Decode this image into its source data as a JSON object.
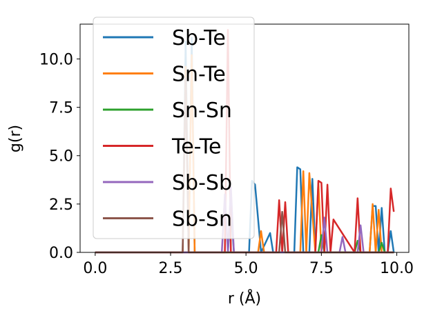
{
  "chart_data": {
    "type": "line",
    "title": "",
    "xlabel": "r (Å)",
    "ylabel": "g(r)",
    "xlim": [
      -0.5,
      10.4
    ],
    "ylim": [
      0,
      11.8
    ],
    "xticks": [
      0.0,
      2.5,
      5.0,
      7.5,
      10.0
    ],
    "xtick_labels": [
      "0.0",
      "2.5",
      "5.0",
      "7.5",
      "10.0"
    ],
    "yticks": [
      0.0,
      2.5,
      5.0,
      7.5,
      10.0
    ],
    "ytick_labels": [
      "0.0",
      "2.5",
      "5.0",
      "7.5",
      "10.0"
    ],
    "grid": false,
    "legend_position": "upper-left",
    "series": [
      {
        "name": "Sb-Te",
        "color": "#1f77b4",
        "x": [
          0.0,
          2.9,
          3.0,
          3.1,
          3.2,
          3.3,
          4.4,
          4.5,
          4.6,
          4.8,
          5.1,
          5.2,
          5.3,
          5.5,
          5.8,
          5.9,
          6.0,
          6.6,
          6.7,
          6.8,
          6.9,
          7.1,
          7.2,
          7.3,
          7.4,
          7.6,
          8.6,
          8.7,
          9.1,
          9.2,
          9.3,
          9.4,
          9.5,
          9.6,
          9.7,
          9.8,
          9.9
        ],
        "y": [
          0.0,
          0.0,
          10.9,
          0.0,
          11.1,
          0.0,
          0.0,
          2.4,
          0.0,
          0.0,
          0.0,
          3.7,
          3.5,
          0.0,
          1.0,
          0.0,
          0.0,
          0.0,
          4.4,
          4.3,
          0.0,
          0.0,
          3.8,
          0.0,
          0.0,
          0.0,
          0.0,
          0.0,
          0.0,
          2.4,
          2.4,
          0.0,
          2.3,
          0.0,
          0.0,
          1.1,
          0.0
        ]
      },
      {
        "name": "Sn-Te",
        "color": "#ff7f0e",
        "x": [
          0.0,
          2.9,
          3.0,
          3.1,
          3.2,
          3.3,
          5.3,
          5.4,
          5.5,
          5.6,
          6.7,
          6.8,
          6.9,
          7.0,
          7.1,
          7.3,
          7.4,
          7.5,
          9.1,
          9.2,
          9.3,
          9.4,
          9.5,
          9.6,
          9.7,
          9.8,
          9.9
        ],
        "y": [
          0.0,
          0.0,
          9.6,
          0.0,
          10.2,
          0.0,
          0.0,
          0.0,
          1.1,
          0.0,
          0.0,
          0.0,
          4.2,
          0.0,
          4.1,
          0.0,
          3.6,
          0.0,
          0.0,
          2.5,
          0.0,
          2.2,
          0.0,
          0.0,
          0.0,
          0.0,
          0.0
        ]
      },
      {
        "name": "Sn-Sn",
        "color": "#2ca02c",
        "x": [
          0.0,
          7.2,
          7.3,
          7.4,
          7.5,
          7.6,
          8.6,
          8.7,
          8.8,
          9.4,
          9.5,
          9.6,
          9.9
        ],
        "y": [
          0.0,
          0.0,
          0.0,
          0.0,
          0.9,
          0.0,
          0.0,
          0.6,
          0.0,
          0.0,
          0.5,
          0.0,
          0.0
        ]
      },
      {
        "name": "Te-Te",
        "color": "#d62728",
        "x": [
          0.0,
          4.3,
          4.4,
          4.5,
          4.6,
          5.9,
          6.0,
          6.1,
          6.2,
          6.3,
          6.4,
          7.3,
          7.4,
          7.5,
          7.6,
          7.7,
          7.8,
          7.9,
          8.6,
          8.7,
          8.8,
          9.7,
          9.8,
          9.9
        ],
        "y": [
          0.0,
          0.0,
          11.5,
          0.0,
          0.0,
          0.0,
          0.0,
          2.7,
          0.0,
          2.6,
          0.0,
          0.0,
          3.7,
          3.6,
          0.0,
          3.5,
          0.0,
          1.7,
          0.0,
          2.8,
          0.0,
          0.0,
          3.3,
          2.1
        ]
      },
      {
        "name": "Sb-Sb",
        "color": "#9467bd",
        "x": [
          0.0,
          4.2,
          4.3,
          4.4,
          4.5,
          4.6,
          7.5,
          7.6,
          7.7,
          8.1,
          8.2,
          8.3,
          8.7,
          8.8,
          8.9,
          9.9
        ],
        "y": [
          0.0,
          0.0,
          3.0,
          0.0,
          3.4,
          0.0,
          0.0,
          1.8,
          0.0,
          0.0,
          0.8,
          0.0,
          0.0,
          1.4,
          0.0,
          0.0
        ]
      },
      {
        "name": "Sb-Sn",
        "color": "#8c564b",
        "x": [
          0.0,
          2.9,
          3.0,
          3.1,
          3.2,
          6.1,
          6.2,
          6.3,
          6.4,
          9.9
        ],
        "y": [
          0.0,
          0.0,
          9.0,
          0.0,
          0.0,
          0.0,
          2.1,
          0.0,
          0.0,
          0.0
        ]
      }
    ]
  }
}
